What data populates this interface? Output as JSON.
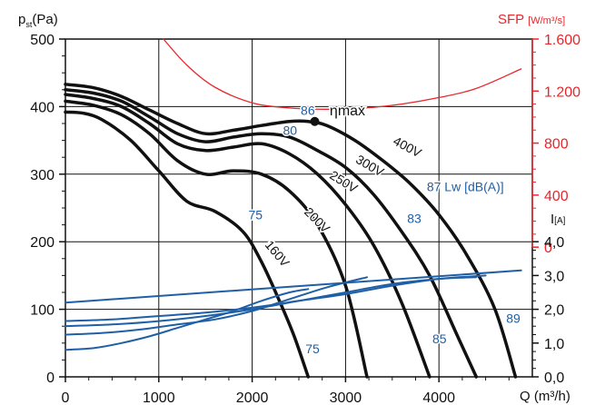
{
  "chart_data": {
    "type": "line",
    "title": "",
    "axes": {
      "left": {
        "label_main": "p",
        "label_sub": "st",
        "label_unit": "(Pa)",
        "ylim": [
          0,
          500
        ],
        "ticks": [
          "0",
          "100",
          "200",
          "300",
          "400",
          "500"
        ]
      },
      "bottom": {
        "label": "Q (m³/h)",
        "xlim": [
          0,
          5000
        ],
        "ticks": [
          "0",
          "1000",
          "2000",
          "3000",
          "4000"
        ]
      },
      "right_sfp": {
        "label_main": "SFP",
        "label_unit": "[W/m³/s]",
        "ticks": [
          "0",
          "400",
          "800",
          "1.200",
          "1.600"
        ],
        "values": [
          0,
          400,
          800,
          1200,
          1600
        ],
        "color": "#e8262b"
      },
      "right_current": {
        "label_main": "I",
        "label_unit": "[A]",
        "ticks": [
          "0,0",
          "1,0",
          "2,0",
          "3,0",
          "4,0"
        ],
        "values": [
          0,
          1,
          2,
          3,
          4
        ]
      }
    },
    "grid": true,
    "series": [
      {
        "name": "400V",
        "kind": "pressure",
        "color": "#111111",
        "x": [
          0,
          300,
          600,
          900,
          1200,
          1500,
          1800,
          2100,
          2400,
          2600,
          2800,
          3100,
          3400,
          3700,
          4000,
          4300,
          4600,
          4820
        ],
        "y": [
          433,
          428,
          415,
          395,
          375,
          360,
          365,
          372,
          378,
          378,
          372,
          350,
          320,
          285,
          240,
          180,
          100,
          0
        ]
      },
      {
        "name": "300V",
        "kind": "pressure",
        "color": "#111111",
        "x": [
          0,
          300,
          600,
          900,
          1200,
          1500,
          1800,
          2100,
          2400,
          2700,
          3000,
          3300,
          3600,
          3900,
          4200,
          4400
        ],
        "y": [
          425,
          420,
          408,
          385,
          360,
          348,
          355,
          360,
          355,
          335,
          310,
          270,
          215,
          150,
          60,
          0
        ]
      },
      {
        "name": "250V",
        "kind": "pressure",
        "color": "#111111",
        "x": [
          0,
          300,
          600,
          900,
          1200,
          1500,
          1800,
          2100,
          2400,
          2700,
          3000,
          3300,
          3600,
          3900
        ],
        "y": [
          418,
          412,
          400,
          375,
          345,
          335,
          340,
          345,
          330,
          300,
          255,
          195,
          110,
          0
        ]
      },
      {
        "name": "200V",
        "kind": "pressure",
        "color": "#111111",
        "x": [
          0,
          300,
          600,
          900,
          1200,
          1500,
          1800,
          2100,
          2400,
          2700,
          3000,
          3230
        ],
        "y": [
          408,
          402,
          388,
          360,
          320,
          300,
          305,
          300,
          275,
          225,
          135,
          0
        ]
      },
      {
        "name": "160V",
        "kind": "pressure",
        "color": "#111111",
        "x": [
          0,
          200,
          400,
          700,
          1000,
          1300,
          1600,
          1900,
          2100,
          2300,
          2450,
          2600
        ],
        "y": [
          392,
          390,
          380,
          350,
          305,
          260,
          245,
          215,
          170,
          110,
          60,
          0
        ]
      },
      {
        "name": "SFP",
        "kind": "sfp",
        "color": "#e8262b",
        "x": [
          1050,
          1300,
          1600,
          2000,
          2400,
          2800,
          3200,
          3600,
          4000,
          4400,
          4880
        ],
        "y": [
          1600,
          1400,
          1230,
          1110,
          1070,
          1060,
          1070,
          1100,
          1150,
          1220,
          1370
        ]
      },
      {
        "name": "I 400V",
        "kind": "current",
        "color": "#1f5fa6",
        "x": [
          0,
          4880
        ],
        "y": [
          2.2,
          3.15
        ]
      },
      {
        "name": "I 300V",
        "kind": "current",
        "color": "#1f5fa6",
        "x": [
          0,
          500,
          1000,
          1500,
          2000,
          2500,
          3000,
          3500,
          4000,
          4500
        ],
        "y": [
          1.65,
          1.7,
          1.8,
          1.9,
          2.05,
          2.25,
          2.45,
          2.7,
          2.9,
          3.0
        ]
      },
      {
        "name": "I 250V",
        "kind": "current",
        "color": "#1f5fa6",
        "x": [
          0,
          500,
          1000,
          1500,
          2000,
          2500,
          3000,
          3500,
          4000,
          4400
        ],
        "y": [
          1.5,
          1.55,
          1.65,
          1.8,
          2.0,
          2.25,
          2.5,
          2.75,
          2.9,
          2.95
        ]
      },
      {
        "name": "I 200V",
        "kind": "current",
        "color": "#1f5fa6",
        "x": [
          0,
          400,
          800,
          1200,
          1600,
          2000,
          2400,
          2800,
          3230
        ],
        "y": [
          1.25,
          1.3,
          1.4,
          1.55,
          1.7,
          1.95,
          2.3,
          2.65,
          2.95
        ]
      },
      {
        "name": "I 160V",
        "kind": "current",
        "color": "#1f5fa6",
        "x": [
          0,
          300,
          600,
          900,
          1200,
          1500,
          1800,
          2100,
          2400,
          2600
        ],
        "y": [
          0.8,
          0.85,
          1.0,
          1.2,
          1.45,
          1.7,
          1.95,
          2.25,
          2.5,
          2.6
        ]
      }
    ],
    "voltage_labels": [
      {
        "text": "400V",
        "x": 3500,
        "y": 345,
        "angle": 28
      },
      {
        "text": "300V",
        "x": 3100,
        "y": 318,
        "angle": 30
      },
      {
        "text": "250V",
        "x": 2820,
        "y": 295,
        "angle": 32
      },
      {
        "text": "200V",
        "x": 2550,
        "y": 243,
        "angle": 45
      },
      {
        "text": "160V",
        "x": 2130,
        "y": 195,
        "angle": 50
      }
    ],
    "annotations": [
      {
        "text": "86",
        "x": 2520,
        "y": 388,
        "color": "#1f5fa6"
      },
      {
        "text": "ηmax",
        "x": 2830,
        "y": 387,
        "color": "#111111"
      },
      {
        "text": "80",
        "x": 2330,
        "y": 358,
        "color": "#1f5fa6"
      },
      {
        "text": "87 Lw [dB(A)]",
        "x": 3870,
        "y": 275,
        "color": "#1f5fa6"
      },
      {
        "text": "75",
        "x": 1960,
        "y": 233,
        "color": "#1f5fa6"
      },
      {
        "text": "83",
        "x": 3660,
        "y": 228,
        "color": "#1f5fa6"
      },
      {
        "text": "85",
        "x": 3930,
        "y": 50,
        "color": "#1f5fa6"
      },
      {
        "text": "89",
        "x": 4720,
        "y": 80,
        "color": "#1f5fa6"
      },
      {
        "text": "75",
        "x": 2570,
        "y": 35,
        "color": "#1f5fa6"
      }
    ],
    "eta_max_point": {
      "x": 2670,
      "y": 378
    }
  }
}
